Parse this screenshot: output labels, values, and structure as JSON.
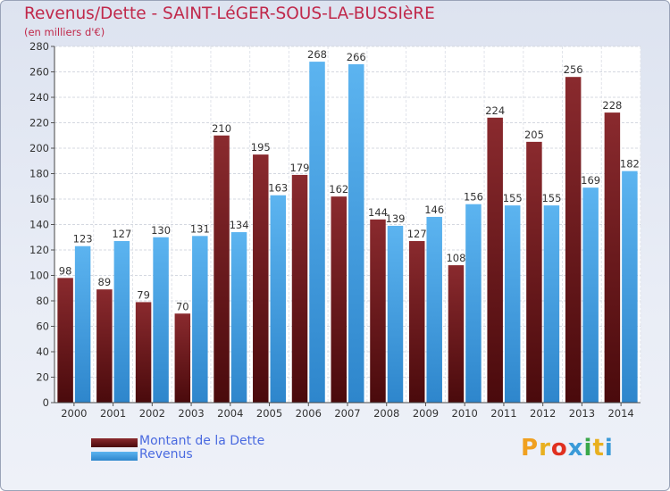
{
  "header": {
    "title": "Revenus/Dette - SAINT-LéGER-SOUS-LA-BUSSIèRE",
    "subtitle": "(en milliers d'€)"
  },
  "legend": {
    "items": [
      {
        "label": "Montant de la Dette",
        "color": "#7a1e22"
      },
      {
        "label": "Revenus",
        "color": "#3aa0e8"
      }
    ]
  },
  "brand": {
    "text": "Proxiti"
  },
  "chart_data": {
    "type": "bar",
    "title": "Revenus/Dette - SAINT-LéGER-SOUS-LA-BUSSIèRE",
    "subtitle": "(en milliers d'€)",
    "categories": [
      "2000",
      "2001",
      "2002",
      "2003",
      "2004",
      "2005",
      "2006",
      "2007",
      "2008",
      "2009",
      "2010",
      "2011",
      "2012",
      "2013",
      "2014"
    ],
    "series": [
      {
        "name": "Montant de la Dette",
        "color": "#7a1e22",
        "values": [
          98,
          89,
          79,
          70,
          210,
          195,
          179,
          162,
          144,
          127,
          108,
          224,
          205,
          256,
          228
        ]
      },
      {
        "name": "Revenus",
        "color": "#3aa0e8",
        "values": [
          123,
          127,
          130,
          131,
          134,
          163,
          268,
          266,
          139,
          146,
          156,
          155,
          155,
          169,
          182
        ]
      }
    ],
    "ylim": [
      0,
      280
    ],
    "yticks": [
      0,
      20,
      40,
      60,
      80,
      100,
      120,
      140,
      160,
      180,
      200,
      220,
      240,
      260,
      280
    ],
    "grid": true,
    "legend_position": "bottom-left"
  }
}
